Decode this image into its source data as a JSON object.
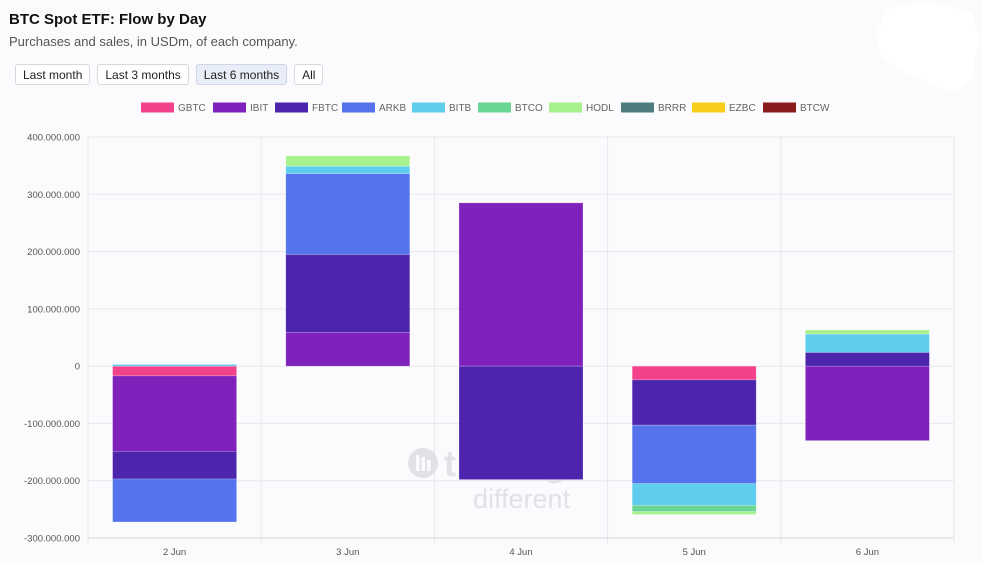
{
  "header": {
    "title": "BTC Spot ETF: Flow by Day",
    "subtitle": "Purchases and sales, in USDm, of each company."
  },
  "range_buttons": [
    {
      "label": "Last month",
      "active": false
    },
    {
      "label": "Last 3 months",
      "active": false
    },
    {
      "label": "Last 6 months",
      "active": true
    },
    {
      "label": "All",
      "active": false
    }
  ],
  "watermark": {
    "line1": "trading",
    "line2": "different"
  },
  "chart_data": {
    "type": "bar",
    "stacked": true,
    "categories": [
      "2 Jun",
      "3 Jun",
      "4 Jun",
      "5 Jun",
      "6 Jun"
    ],
    "ylim": [
      -300000000,
      400000000
    ],
    "yticks": [
      400000000,
      300000000,
      200000000,
      100000000,
      0,
      -100000000,
      -200000000,
      -300000000
    ],
    "ytick_labels": [
      "400.000.000",
      "300.000.000",
      "200.000.000",
      "100.000.000",
      "0",
      "-100.000.000",
      "-200.000.000",
      "-300.000.000"
    ],
    "grid": true,
    "legend_position": "top",
    "series": [
      {
        "name": "GBTC",
        "color": "#f4418c",
        "values": [
          -17000000,
          0,
          0,
          -24000000,
          0
        ]
      },
      {
        "name": "IBIT",
        "color": "#7f22bc",
        "values": [
          -132000000,
          59000000,
          285000000,
          0,
          -130000000
        ]
      },
      {
        "name": "FBTC",
        "color": "#4d24ac",
        "values": [
          -48000000,
          136000000,
          -198000000,
          -79000000,
          24000000
        ]
      },
      {
        "name": "ARKB",
        "color": "#5473ec",
        "values": [
          -75000000,
          141000000,
          0,
          -102000000,
          0
        ]
      },
      {
        "name": "BITB",
        "color": "#5ecdee",
        "values": [
          3000000,
          13000000,
          0,
          -38000000,
          32000000
        ]
      },
      {
        "name": "BTCO",
        "color": "#6bd594",
        "values": [
          0,
          0,
          0,
          -11000000,
          0
        ]
      },
      {
        "name": "HODL",
        "color": "#a7f28d",
        "values": [
          0,
          18000000,
          0,
          -5000000,
          7000000
        ]
      },
      {
        "name": "BRRR",
        "color": "#4d7c7e",
        "values": [
          0,
          0,
          0,
          0,
          0
        ]
      },
      {
        "name": "EZBC",
        "color": "#f8cd1b",
        "values": [
          0,
          0,
          0,
          0,
          0
        ]
      },
      {
        "name": "BTCW",
        "color": "#8a1c1e",
        "values": [
          0,
          0,
          0,
          0,
          0
        ]
      }
    ]
  }
}
